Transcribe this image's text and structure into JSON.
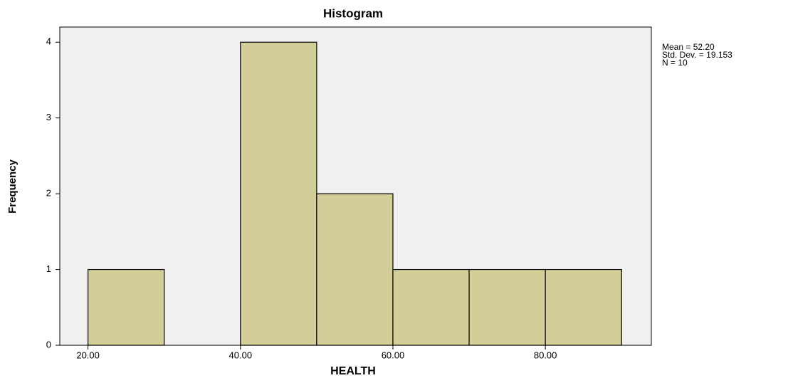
{
  "chart_data": {
    "type": "histogram",
    "title": "Histogram",
    "xlabel": "HEALTH",
    "ylabel": "Frequency",
    "bins": [
      20,
      30,
      40,
      50,
      60,
      70,
      80,
      90
    ],
    "counts": [
      1,
      0,
      4,
      2,
      1,
      1,
      1
    ],
    "color": "#d3ce97",
    "xlim": [
      16.3,
      93.9
    ],
    "ylim": [
      0,
      4.2
    ],
    "xticks": [
      {
        "value": 20,
        "label": "20.00"
      },
      {
        "value": 40,
        "label": "40.00"
      },
      {
        "value": 60,
        "label": "60.00"
      },
      {
        "value": 80,
        "label": "80.00"
      }
    ],
    "yticks": [
      0,
      1,
      2,
      3,
      4
    ],
    "annotations": [
      "Mean = 52.20",
      "Std. Dev. = 19.153",
      "N = 10"
    ]
  }
}
